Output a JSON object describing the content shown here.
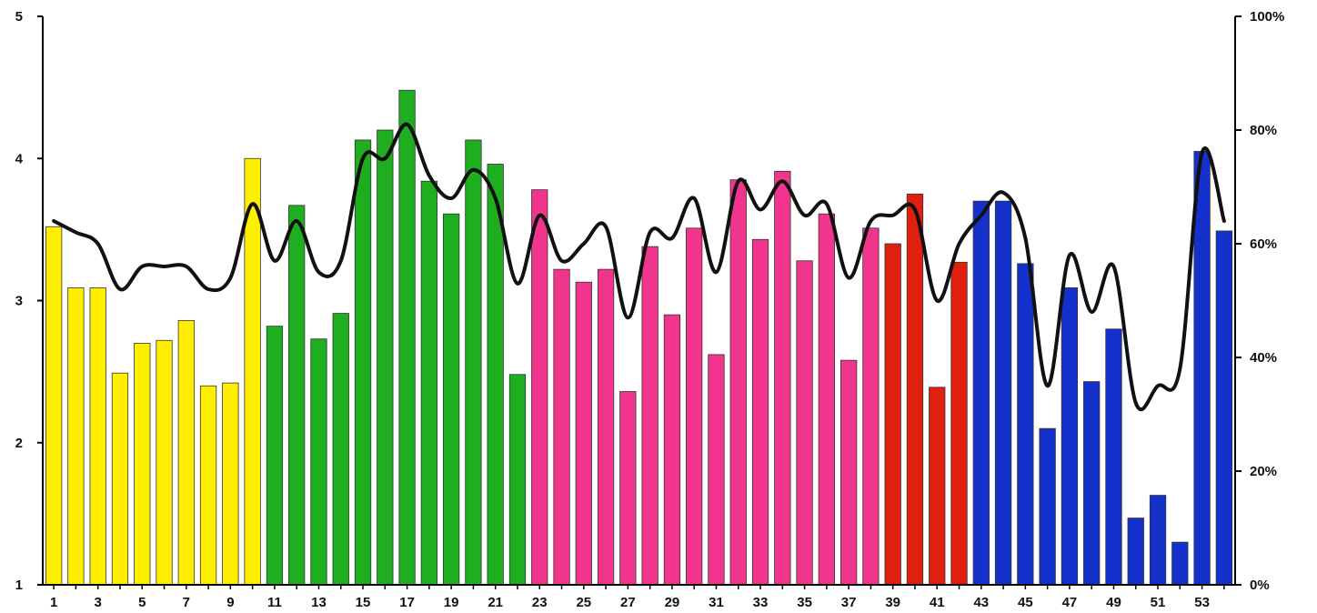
{
  "chart_data": {
    "type": "bar",
    "title": "",
    "xlabel": "",
    "ylabel": "",
    "ylim": [
      1,
      5
    ],
    "y2lim": [
      0,
      100
    ],
    "x": [
      1,
      2,
      3,
      4,
      5,
      6,
      7,
      8,
      9,
      10,
      11,
      12,
      13,
      14,
      15,
      16,
      17,
      18,
      19,
      20,
      21,
      22,
      23,
      24,
      25,
      26,
      27,
      28,
      29,
      30,
      31,
      32,
      33,
      34,
      35,
      36,
      37,
      38,
      39,
      40,
      41,
      42,
      43,
      44,
      45,
      46,
      47,
      48,
      49,
      50,
      51,
      52,
      53,
      54
    ],
    "x_tick_labels": [
      "1",
      "3",
      "5",
      "7",
      "9",
      "11",
      "13",
      "15",
      "17",
      "19",
      "21",
      "23",
      "25",
      "27",
      "29",
      "31",
      "33",
      "35",
      "37",
      "39",
      "41",
      "43",
      "45",
      "47",
      "49",
      "51",
      "53"
    ],
    "y_tick_labels": [
      "1",
      "2",
      "3",
      "4",
      "5"
    ],
    "y2_tick_labels": [
      "0%",
      "20%",
      "40%",
      "60%",
      "80%",
      "100%"
    ],
    "values": [
      3.52,
      3.09,
      3.09,
      2.49,
      2.7,
      2.72,
      2.86,
      2.4,
      2.42,
      4.0,
      2.82,
      3.67,
      2.73,
      2.91,
      4.13,
      4.2,
      4.48,
      3.84,
      3.61,
      4.13,
      3.96,
      2.48,
      3.78,
      3.22,
      3.13,
      3.22,
      2.36,
      3.38,
      2.9,
      3.51,
      2.62,
      3.85,
      3.43,
      3.91,
      3.28,
      3.61,
      2.58,
      3.51,
      3.4,
      3.75,
      2.39,
      3.27,
      3.7,
      3.7,
      3.26,
      2.1,
      3.09,
      2.43,
      2.8,
      1.47,
      1.63,
      1.3,
      4.05,
      3.49
    ],
    "bar_colors": [
      "#ffee00",
      "#ffee00",
      "#ffee00",
      "#ffee00",
      "#ffee00",
      "#ffee00",
      "#ffee00",
      "#ffee00",
      "#ffee00",
      "#ffee00",
      "#1fae1f",
      "#1fae1f",
      "#1fae1f",
      "#1fae1f",
      "#1fae1f",
      "#1fae1f",
      "#1fae1f",
      "#1fae1f",
      "#1fae1f",
      "#1fae1f",
      "#1fae1f",
      "#1fae1f",
      "#f2358c",
      "#f2358c",
      "#f2358c",
      "#f2358c",
      "#f2358c",
      "#f2358c",
      "#f2358c",
      "#f2358c",
      "#f2358c",
      "#f2358c",
      "#f2358c",
      "#f2358c",
      "#f2358c",
      "#f2358c",
      "#f2358c",
      "#f2358c",
      "#e0200f",
      "#e0200f",
      "#e0200f",
      "#e0200f",
      "#1531cc",
      "#1531cc",
      "#1531cc",
      "#1531cc",
      "#1531cc",
      "#1531cc",
      "#1531cc",
      "#1531cc",
      "#1531cc",
      "#1531cc",
      "#1531cc",
      "#1531cc"
    ],
    "line_values": [
      64,
      62,
      60,
      52,
      56,
      56,
      56,
      52,
      54,
      67,
      57,
      64,
      55,
      57,
      75,
      75,
      81,
      72,
      68,
      73,
      68,
      53,
      65,
      57,
      60,
      63,
      47,
      62,
      61,
      68,
      55,
      71,
      66,
      71,
      65,
      67,
      54,
      64,
      65,
      66,
      50,
      60,
      65,
      69,
      61,
      35,
      58,
      48,
      56,
      32,
      35,
      38,
      76,
      64
    ],
    "line_axis": "secondary",
    "grid": false,
    "legend": "none"
  },
  "colors": {
    "line": "#111111",
    "axis": "#000000",
    "bar_stroke": "#333333"
  }
}
